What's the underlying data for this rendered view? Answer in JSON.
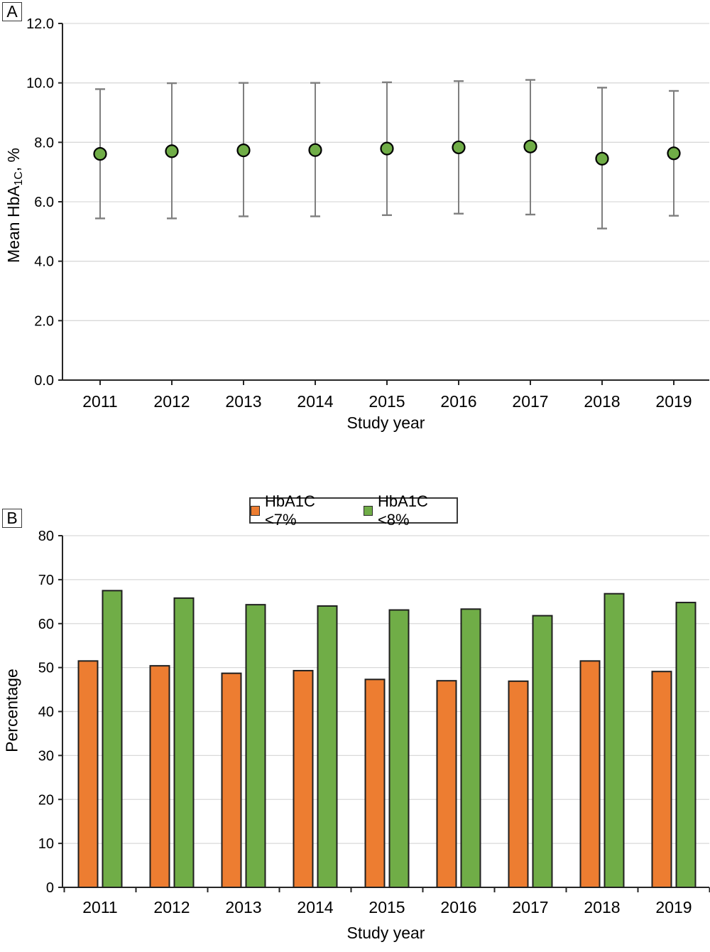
{
  "panel_a": {
    "label": "A",
    "y_axis_title": {
      "pre": "Mean HbA",
      "sub": "1C",
      "post": ", %"
    },
    "x_axis_title": "Study year"
  },
  "panel_b": {
    "label": "B",
    "y_axis_title": "Percentage",
    "x_axis_title": "Study year"
  },
  "colors": {
    "orange": "#ED7D31",
    "green": "#70AD47",
    "marker_outline": "#000000",
    "bar_outline": "#1F1F1F",
    "error_bar": "#7F7F7F",
    "gridline": "#D9D9D9",
    "axis": "#262626",
    "text": "#000000"
  },
  "chart_data": [
    {
      "type": "scatter",
      "panel": "A",
      "x": [
        2011,
        2012,
        2013,
        2014,
        2015,
        2016,
        2017,
        2018,
        2019
      ],
      "series": [
        {
          "name": "Mean HbA1C",
          "marker": "circle",
          "marker_color": "#70AD47",
          "values": [
            7.61,
            7.7,
            7.73,
            7.74,
            7.79,
            7.83,
            7.86,
            7.45,
            7.63
          ],
          "error_upper": [
            9.79,
            9.99,
            10.0,
            10.0,
            10.02,
            10.06,
            10.1,
            9.84,
            9.73
          ],
          "error_lower": [
            5.44,
            5.44,
            5.51,
            5.51,
            5.55,
            5.6,
            5.57,
            5.1,
            5.53
          ]
        }
      ],
      "title": "",
      "xlabel": "Study year",
      "ylabel": "Mean HbA1C, %",
      "ylim": [
        0,
        12
      ],
      "ytick_step": 2,
      "ytick_decimals": 1,
      "grid": true,
      "legend_position": "none"
    },
    {
      "type": "bar",
      "panel": "B",
      "categories": [
        "2011",
        "2012",
        "2013",
        "2014",
        "2015",
        "2016",
        "2017",
        "2018",
        "2019"
      ],
      "series": [
        {
          "name": "HbA1C <7%",
          "color": "#ED7D31",
          "values": [
            51.5,
            50.4,
            48.7,
            49.3,
            47.3,
            47.0,
            46.9,
            51.5,
            49.1
          ]
        },
        {
          "name": "HbA1C <8%",
          "color": "#70AD47",
          "values": [
            67.5,
            65.8,
            64.3,
            64.0,
            63.1,
            63.3,
            61.8,
            66.8,
            64.8
          ]
        }
      ],
      "title": "",
      "xlabel": "Study year",
      "ylabel": "Percentage",
      "ylim": [
        0,
        80
      ],
      "ytick_step": 10,
      "ytick_decimals": 0,
      "grid": true,
      "legend_position": "top"
    }
  ]
}
